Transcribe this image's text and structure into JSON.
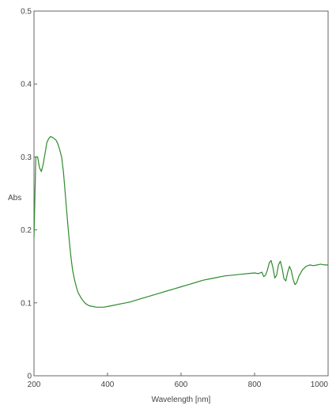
{
  "chart_data": {
    "type": "line",
    "title": "",
    "xlabel": "Wavelength [nm]",
    "ylabel": "Abs",
    "xlim": [
      200,
      1000
    ],
    "ylim": [
      0,
      0.5
    ],
    "grid": false,
    "x_ticks": [
      200,
      400,
      600,
      800,
      1000
    ],
    "x_tick_labels": [
      "200",
      "400",
      "600",
      "800",
      "1000"
    ],
    "y_ticks": [
      0,
      0.1,
      0.2,
      0.3,
      0.4,
      0.5
    ],
    "y_tick_labels": [
      "0",
      "0.1",
      "0.2",
      "0.3",
      "0.4",
      "0.5"
    ],
    "colors": {
      "line": "#2e8b2e",
      "axis": "#666666"
    },
    "series": [
      {
        "x": [
          200,
          205,
          210,
          215,
          220,
          225,
          230,
          235,
          240,
          245,
          250,
          255,
          260,
          265,
          270,
          275,
          280,
          285,
          290,
          295,
          300,
          305,
          310,
          315,
          320,
          330,
          340,
          350,
          360,
          370,
          380,
          390,
          400,
          410,
          420,
          430,
          440,
          450,
          460,
          480,
          500,
          520,
          540,
          560,
          580,
          600,
          620,
          640,
          660,
          680,
          700,
          720,
          740,
          760,
          780,
          800,
          810,
          820,
          825,
          830,
          835,
          840,
          845,
          850,
          855,
          860,
          865,
          870,
          875,
          880,
          885,
          890,
          895,
          900,
          905,
          910,
          915,
          920,
          930,
          940,
          950,
          960,
          970,
          980,
          990,
          1000
        ],
        "y": [
          0.19,
          0.3,
          0.3,
          0.285,
          0.28,
          0.29,
          0.305,
          0.32,
          0.325,
          0.328,
          0.327,
          0.325,
          0.323,
          0.318,
          0.31,
          0.3,
          0.28,
          0.25,
          0.22,
          0.19,
          0.165,
          0.145,
          0.132,
          0.122,
          0.114,
          0.105,
          0.099,
          0.096,
          0.095,
          0.094,
          0.094,
          0.094,
          0.095,
          0.096,
          0.097,
          0.098,
          0.099,
          0.1,
          0.101,
          0.104,
          0.107,
          0.11,
          0.113,
          0.116,
          0.119,
          0.122,
          0.125,
          0.128,
          0.131,
          0.133,
          0.135,
          0.137,
          0.138,
          0.139,
          0.14,
          0.141,
          0.14,
          0.142,
          0.136,
          0.138,
          0.145,
          0.155,
          0.158,
          0.148,
          0.134,
          0.138,
          0.152,
          0.157,
          0.147,
          0.133,
          0.13,
          0.142,
          0.15,
          0.144,
          0.132,
          0.125,
          0.128,
          0.136,
          0.145,
          0.15,
          0.152,
          0.151,
          0.152,
          0.153,
          0.152,
          0.152
        ]
      }
    ]
  }
}
